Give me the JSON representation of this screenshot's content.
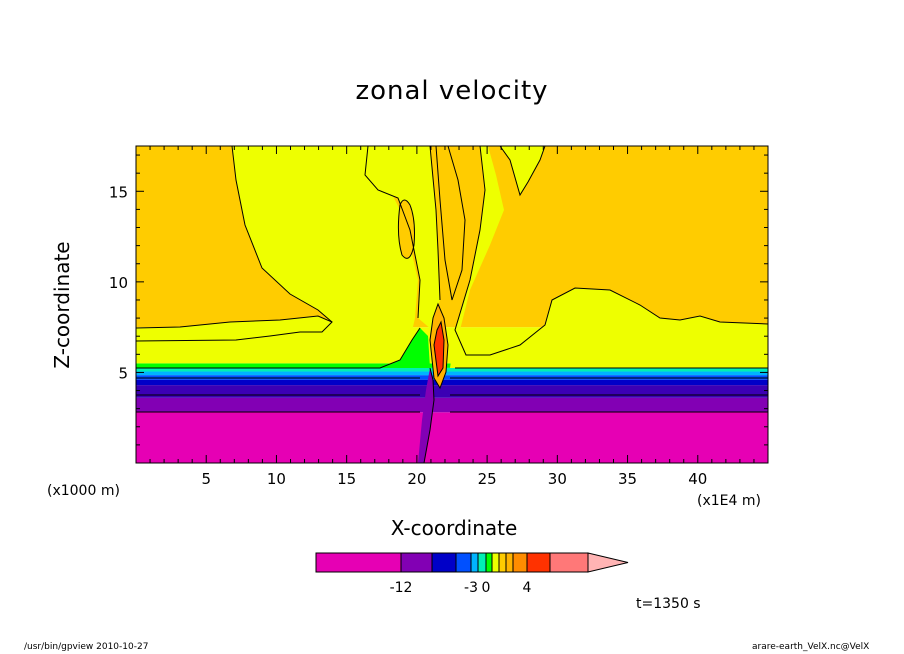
{
  "title": "zonal velocity",
  "footer": {
    "left": "/usr/bin/gpview   2010-10-27",
    "right": "arare-earth_VelX.nc@VelX"
  },
  "time_label": "t=1350 s",
  "x_unit_left": "(x1000 m)",
  "x_unit_right": "(x1E4 m)",
  "chart_data": {
    "type": "heatmap",
    "title": "zonal velocity",
    "xlabel": "X-coordinate",
    "ylabel": "Z-coordinate",
    "xlim": [
      0,
      45
    ],
    "ylim": [
      0,
      17.5
    ],
    "x_ticks": [
      5,
      10,
      15,
      20,
      25,
      30,
      35,
      40
    ],
    "y_ticks": [
      5,
      10,
      15
    ],
    "x_tick_labels": [
      "5",
      "10",
      "15",
      "20",
      "25",
      "30",
      "35",
      "40"
    ],
    "y_tick_labels": [
      "5",
      "10",
      "15"
    ],
    "layers": [
      {
        "z_bottom": 0,
        "z_top": 2.8,
        "color": "#e600b4"
      },
      {
        "z_bottom": 2.8,
        "z_top": 3.6,
        "color": "#8200b4"
      },
      {
        "z_bottom": 3.6,
        "z_top": 4.3,
        "color": "#3c00b4"
      },
      {
        "z_bottom": 4.3,
        "z_top": 4.6,
        "color": "#0000c8"
      },
      {
        "z_bottom": 4.6,
        "z_top": 4.85,
        "color": "#0050ff"
      },
      {
        "z_bottom": 4.85,
        "z_top": 5.05,
        "color": "#00b4ff"
      },
      {
        "z_bottom": 5.05,
        "z_top": 5.25,
        "color": "#00f0b4"
      },
      {
        "z_bottom": 5.25,
        "z_top": 5.5,
        "color": "#00ff00"
      },
      {
        "z_bottom": 5.5,
        "z_top": 7.5,
        "color": "#eeff00"
      },
      {
        "z_bottom": 7.5,
        "z_top": 17.5,
        "color": "#ffcc00"
      }
    ],
    "colorbar": {
      "colors": [
        "#e600b4",
        "#8200b4",
        "#0000c8",
        "#0050ff",
        "#00b4ff",
        "#00f0b4",
        "#00ff00",
        "#eeff00",
        "#ffcc00",
        "#ffb400",
        "#ff8c00",
        "#ff3200",
        "#ff7878",
        "#ffb4b4"
      ],
      "labels": [
        "-12",
        "-3",
        "0",
        "4"
      ]
    }
  }
}
